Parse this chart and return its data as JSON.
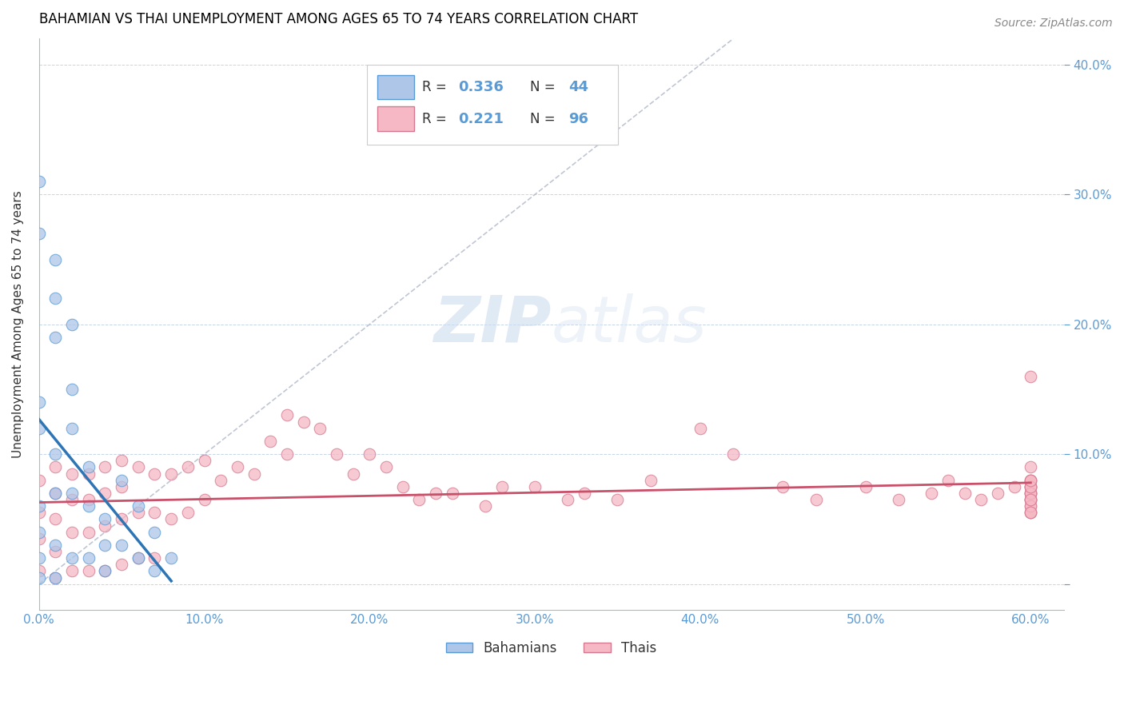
{
  "title": "BAHAMIAN VS THAI UNEMPLOYMENT AMONG AGES 65 TO 74 YEARS CORRELATION CHART",
  "source": "Source: ZipAtlas.com",
  "ylabel": "Unemployment Among Ages 65 to 74 years",
  "xlim": [
    0.0,
    0.62
  ],
  "ylim": [
    -0.02,
    0.42
  ],
  "xticks": [
    0.0,
    0.1,
    0.2,
    0.3,
    0.4,
    0.5,
    0.6
  ],
  "xticklabels": [
    "0.0%",
    "10.0%",
    "20.0%",
    "30.0%",
    "40.0%",
    "50.0%",
    "60.0%"
  ],
  "yticks": [
    0.0,
    0.1,
    0.2,
    0.3,
    0.4
  ],
  "yticklabels": [
    "",
    "10.0%",
    "20.0%",
    "30.0%",
    "40.0%"
  ],
  "bahamian_color": "#aec6e8",
  "bahamian_edge": "#5b9bd5",
  "thai_color": "#f5b8c4",
  "thai_edge": "#d47a90",
  "line_blue": "#2e75b6",
  "line_pink": "#c9506a",
  "dashed_line_color": "#b0b8c8",
  "right_tick_color": "#5b9bd5",
  "watermark_zip": "ZIP",
  "watermark_atlas": "atlas",
  "bahamian_x": [
    0.0,
    0.0,
    0.0,
    0.0,
    0.0,
    0.0,
    0.0,
    0.0,
    0.01,
    0.01,
    0.01,
    0.01,
    0.01,
    0.01,
    0.01,
    0.02,
    0.02,
    0.02,
    0.02,
    0.02,
    0.03,
    0.03,
    0.03,
    0.04,
    0.04,
    0.04,
    0.05,
    0.05,
    0.06,
    0.06,
    0.07,
    0.07,
    0.08
  ],
  "bahamian_y": [
    0.31,
    0.27,
    0.14,
    0.12,
    0.06,
    0.04,
    0.02,
    0.005,
    0.25,
    0.22,
    0.19,
    0.1,
    0.07,
    0.03,
    0.005,
    0.2,
    0.15,
    0.12,
    0.07,
    0.02,
    0.09,
    0.06,
    0.02,
    0.05,
    0.03,
    0.01,
    0.08,
    0.03,
    0.06,
    0.02,
    0.04,
    0.01,
    0.02
  ],
  "thai_x": [
    0.0,
    0.0,
    0.0,
    0.0,
    0.01,
    0.01,
    0.01,
    0.01,
    0.01,
    0.02,
    0.02,
    0.02,
    0.02,
    0.03,
    0.03,
    0.03,
    0.03,
    0.04,
    0.04,
    0.04,
    0.04,
    0.05,
    0.05,
    0.05,
    0.05,
    0.06,
    0.06,
    0.06,
    0.07,
    0.07,
    0.07,
    0.08,
    0.08,
    0.09,
    0.09,
    0.1,
    0.1,
    0.11,
    0.12,
    0.13,
    0.14,
    0.15,
    0.15,
    0.16,
    0.17,
    0.18,
    0.19,
    0.2,
    0.21,
    0.22,
    0.23,
    0.24,
    0.25,
    0.27,
    0.28,
    0.3,
    0.32,
    0.33,
    0.35,
    0.37,
    0.4,
    0.42,
    0.45,
    0.47,
    0.5,
    0.52,
    0.54,
    0.55,
    0.56,
    0.57,
    0.58,
    0.59,
    0.6,
    0.6,
    0.6,
    0.6,
    0.6,
    0.6,
    0.6,
    0.6,
    0.6,
    0.6,
    0.6,
    0.6,
    0.6,
    0.6,
    0.6,
    0.6,
    0.6,
    0.6,
    0.6,
    0.6,
    0.6,
    0.6
  ],
  "thai_y": [
    0.08,
    0.055,
    0.035,
    0.01,
    0.09,
    0.07,
    0.05,
    0.025,
    0.005,
    0.085,
    0.065,
    0.04,
    0.01,
    0.085,
    0.065,
    0.04,
    0.01,
    0.09,
    0.07,
    0.045,
    0.01,
    0.095,
    0.075,
    0.05,
    0.015,
    0.09,
    0.055,
    0.02,
    0.085,
    0.055,
    0.02,
    0.085,
    0.05,
    0.09,
    0.055,
    0.095,
    0.065,
    0.08,
    0.09,
    0.085,
    0.11,
    0.13,
    0.1,
    0.125,
    0.12,
    0.1,
    0.085,
    0.1,
    0.09,
    0.075,
    0.065,
    0.07,
    0.07,
    0.06,
    0.075,
    0.075,
    0.065,
    0.07,
    0.065,
    0.08,
    0.12,
    0.1,
    0.075,
    0.065,
    0.075,
    0.065,
    0.07,
    0.08,
    0.07,
    0.065,
    0.07,
    0.075,
    0.08,
    0.07,
    0.065,
    0.075,
    0.06,
    0.07,
    0.075,
    0.065,
    0.055,
    0.07,
    0.16,
    0.065,
    0.055,
    0.075,
    0.08,
    0.09,
    0.06,
    0.055,
    0.07,
    0.065,
    0.075,
    0.08
  ]
}
